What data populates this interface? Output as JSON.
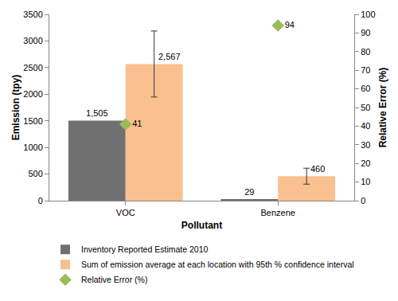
{
  "chart_data": {
    "type": "bar",
    "categories": [
      "VOC",
      "Benzene"
    ],
    "x_label": "Pollutant",
    "y_label": "Emission (tpy)",
    "y2_label": "Relative Error (%)",
    "ylim": [
      0,
      3500
    ],
    "yticks": [
      0,
      500,
      1000,
      1500,
      2000,
      2500,
      3000,
      3500
    ],
    "y2lim": [
      0,
      100
    ],
    "y2ticks": [
      0,
      10,
      20,
      30,
      40,
      50,
      60,
      70,
      80,
      90,
      100
    ],
    "grid": false,
    "legend": "bottom",
    "data_labels": true,
    "series": [
      {
        "name": "Inventory Reported Estimate 2010",
        "type": "bar",
        "color": "#707070",
        "values": [
          1505,
          29
        ],
        "value_labels": [
          "1,505",
          "29"
        ]
      },
      {
        "name": "Sum of emission average at each location with 95th % confidence interval",
        "type": "bar",
        "color": "#fac090",
        "values": [
          2567,
          460
        ],
        "value_labels": [
          "2,567",
          "460"
        ],
        "error": [
          620,
          150
        ]
      },
      {
        "name": "Relative Error (%)",
        "type": "scatter",
        "marker": "diamond",
        "color": "#9bbb59",
        "axis": "y2",
        "values": [
          41,
          94
        ]
      }
    ]
  }
}
